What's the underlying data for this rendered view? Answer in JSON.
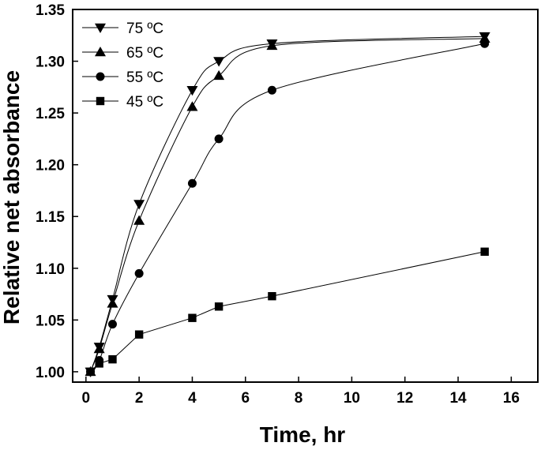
{
  "chart_data": {
    "type": "line",
    "title": "",
    "xlabel": "Time, hr",
    "ylabel": "Relative net absorbance",
    "xlim": [
      -0.5,
      17
    ],
    "ylim": [
      0.99,
      1.35
    ],
    "xticks": [
      0,
      2,
      4,
      6,
      8,
      10,
      12,
      14,
      16
    ],
    "yticks": [
      1.0,
      1.05,
      1.1,
      1.15,
      1.2,
      1.25,
      1.3,
      1.35
    ],
    "ytick_labels": [
      "1.00",
      "1.05",
      "1.10",
      "1.15",
      "1.20",
      "1.25",
      "1.30",
      "1.35"
    ],
    "grid": false,
    "legend_position": "top-left",
    "series": [
      {
        "name": "75 ºC",
        "marker": "triangle-down",
        "x": [
          0.17,
          0.5,
          1,
          2,
          4,
          5,
          7,
          15
        ],
        "y": [
          1.0,
          1.024,
          1.07,
          1.162,
          1.272,
          1.3,
          1.317,
          1.324
        ]
      },
      {
        "name": "65 ºC",
        "marker": "triangle-up",
        "x": [
          0.17,
          0.5,
          1,
          2,
          4,
          5,
          7,
          15
        ],
        "y": [
          1.0,
          1.022,
          1.066,
          1.146,
          1.256,
          1.286,
          1.315,
          1.322
        ]
      },
      {
        "name": "55 ºC",
        "marker": "circle",
        "x": [
          0.17,
          0.5,
          1,
          2,
          4,
          5,
          7,
          15
        ],
        "y": [
          1.0,
          1.011,
          1.046,
          1.095,
          1.182,
          1.225,
          1.272,
          1.317
        ]
      },
      {
        "name": "45 ºC",
        "marker": "square",
        "x": [
          0.17,
          0.5,
          1,
          2,
          4,
          5,
          7,
          15
        ],
        "y": [
          1.0,
          1.008,
          1.012,
          1.036,
          1.052,
          1.063,
          1.073,
          1.116
        ]
      }
    ]
  }
}
